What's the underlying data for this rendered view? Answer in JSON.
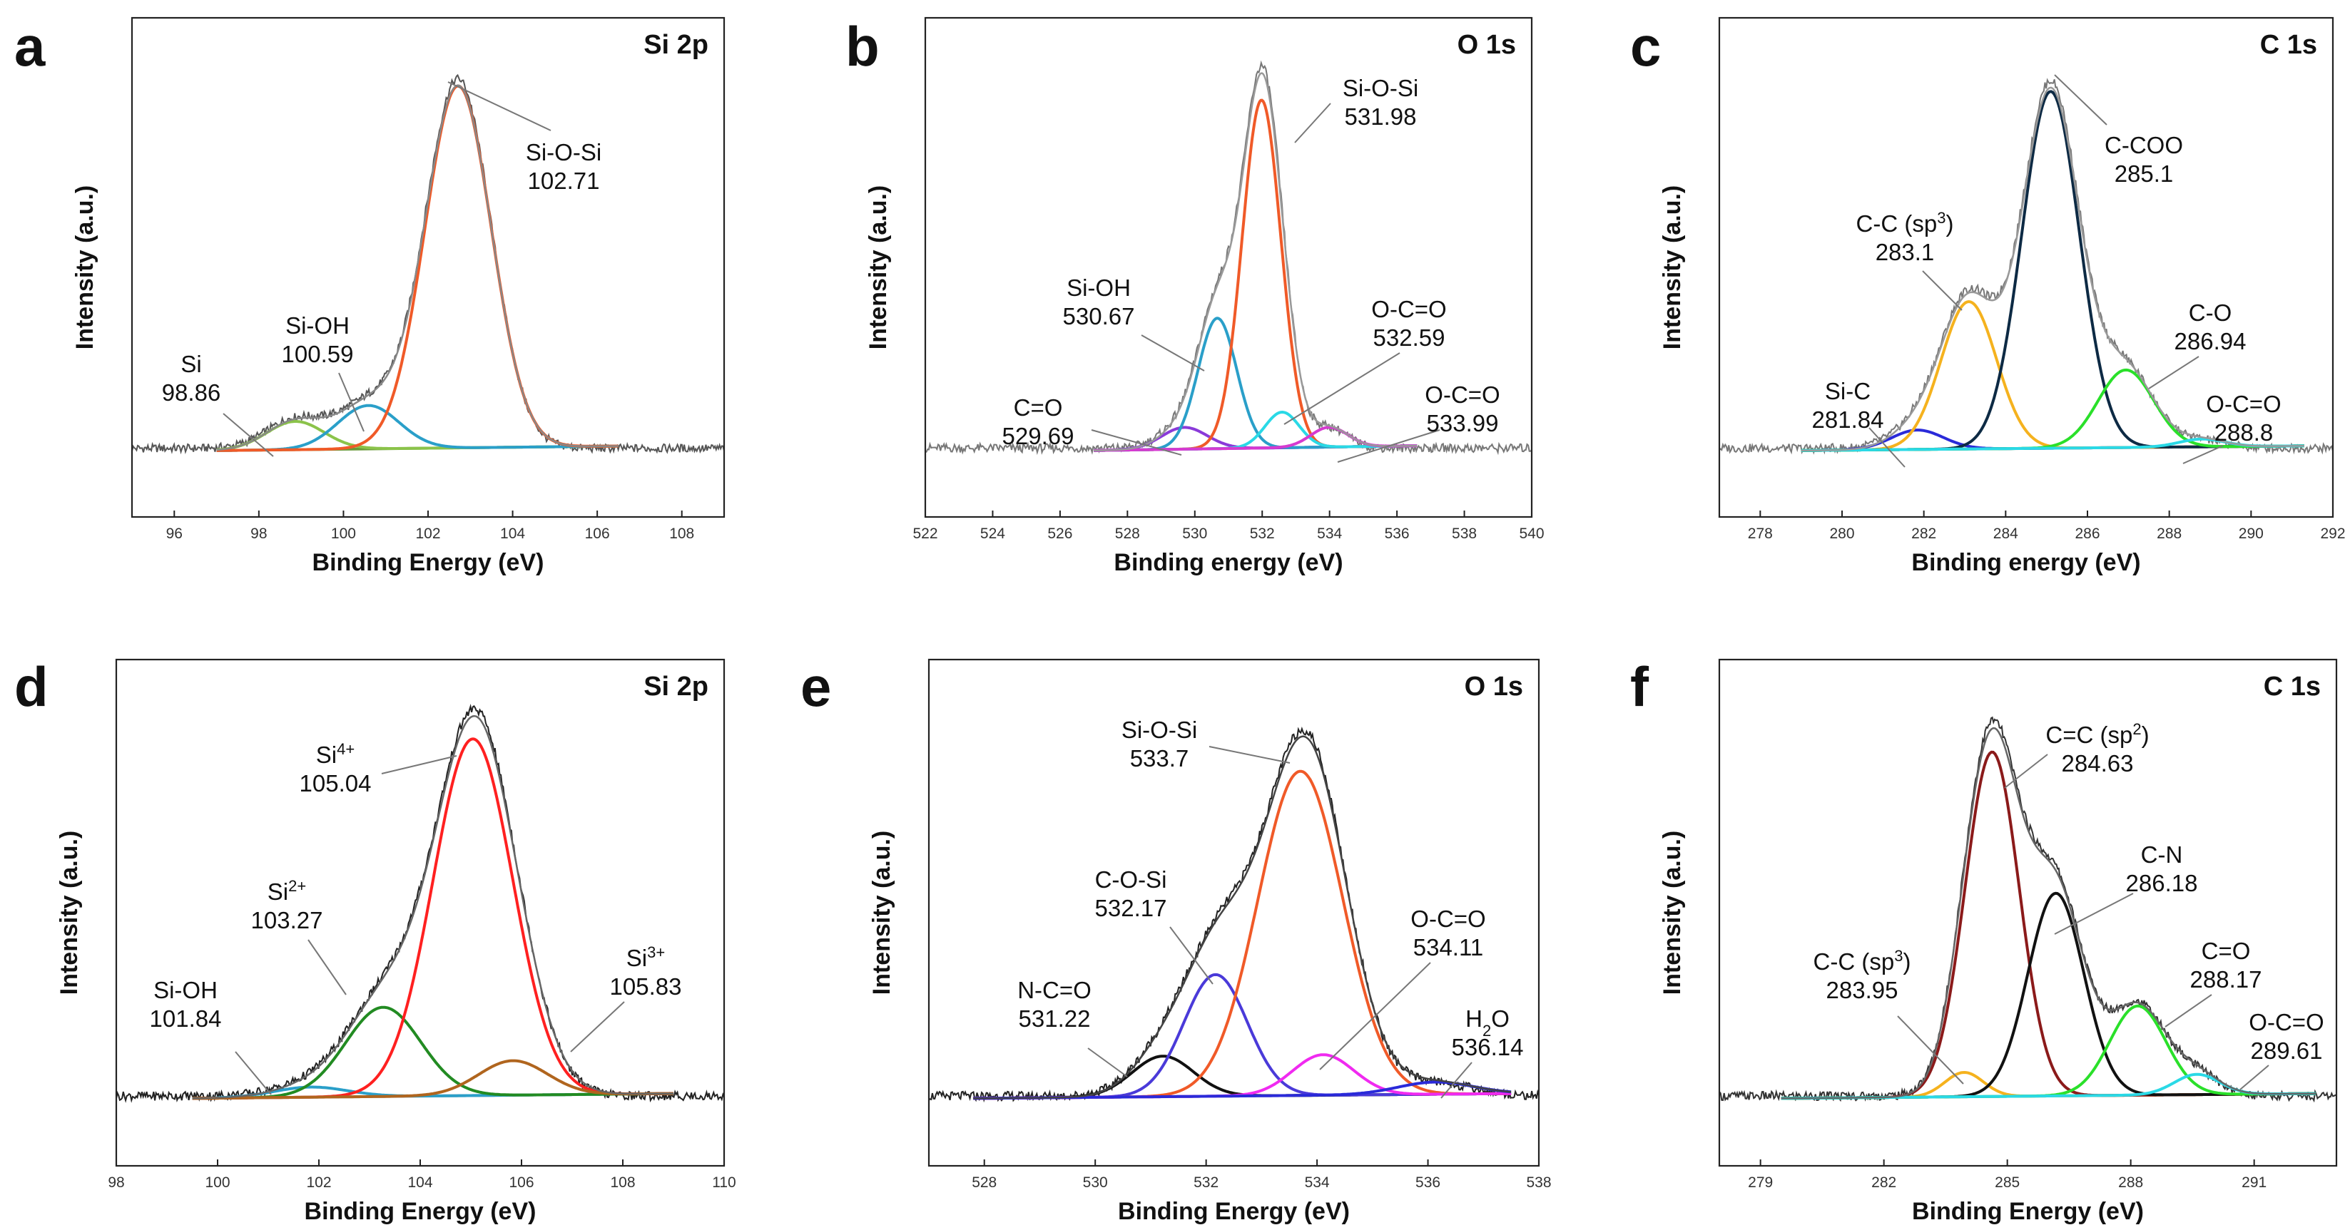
{
  "chart_data": [
    {
      "type": "line",
      "panel": "a",
      "title": "Si 2p",
      "xlabel": "Binding Energy (eV)",
      "ylabel": "Intensity (a.u.)",
      "xlim": [
        95,
        109
      ],
      "xticks": [
        96,
        98,
        100,
        102,
        104,
        106,
        108
      ],
      "fit_range": [
        97,
        106.5
      ],
      "ymax": 1.08,
      "envelope_color": "#888888",
      "raw_color": "#555555",
      "background_color": "#6a9a3a",
      "components": [
        {
          "name": "Si",
          "center": 98.86,
          "fwhm": 1.6,
          "height": 0.075,
          "color": "#8bc34a"
        },
        {
          "name": "Si-OH",
          "center": 100.59,
          "fwhm": 1.7,
          "height": 0.115,
          "color": "#2a9fc9"
        },
        {
          "name": "Si-O-Si",
          "center": 102.71,
          "fwhm": 1.85,
          "height": 0.96,
          "color": "#f05a28"
        }
      ],
      "annotations": [
        {
          "lines": [
            "Si-O-Si",
            "102.71"
          ]
        },
        {
          "lines": [
            "Si-OH",
            "100.59"
          ]
        },
        {
          "lines": [
            "Si",
            "98.86"
          ]
        }
      ]
    },
    {
      "type": "line",
      "panel": "b",
      "title": "O 1s",
      "xlabel": "Binding energy (eV)",
      "ylabel": "Intensity (a.u.)",
      "xlim": [
        522,
        540
      ],
      "xticks": [
        522,
        524,
        526,
        528,
        530,
        532,
        534,
        536,
        538,
        540
      ],
      "fit_range": [
        527,
        536.6
      ],
      "ymax": 1.03,
      "envelope_color": "#999999",
      "raw_color": "#777777",
      "background_color": "#2a6ebf",
      "components": [
        {
          "name": "C=O",
          "center": 529.69,
          "fwhm": 1.6,
          "height": 0.055,
          "color": "#8a3ad9"
        },
        {
          "name": "Si-OH",
          "center": 530.67,
          "fwhm": 1.35,
          "height": 0.33,
          "color": "#2a9fc9"
        },
        {
          "name": "Si-O-Si",
          "center": 531.98,
          "fwhm": 1.35,
          "height": 0.88,
          "color": "#f05a28"
        },
        {
          "name": "O-C=O",
          "center": 532.59,
          "fwhm": 1.2,
          "height": 0.09,
          "color": "#2ad9e6"
        },
        {
          "name": "O-C=O (2)",
          "center": 533.99,
          "fwhm": 1.3,
          "height": 0.05,
          "color": "#d63ad0"
        }
      ],
      "annotations": [
        {
          "lines": [
            "Si-O-Si",
            "531.98"
          ]
        },
        {
          "lines": [
            "Si-OH",
            "530.67"
          ]
        },
        {
          "lines": [
            "O-C=O",
            "532.59"
          ]
        },
        {
          "lines": [
            "C=O",
            "529.69"
          ]
        },
        {
          "lines": [
            "O-C=O",
            "533.99"
          ]
        }
      ]
    },
    {
      "type": "line",
      "panel": "c",
      "title": "C 1s",
      "xlabel": "Binding energy (eV)",
      "ylabel": "Intensity (a.u.)",
      "xlim": [
        277,
        292
      ],
      "xticks": [
        278,
        280,
        282,
        284,
        286,
        288,
        290,
        292
      ],
      "fit_range": [
        279,
        291.3
      ],
      "ymax": 1.05,
      "envelope_color": "#999999",
      "raw_color": "#777777",
      "background_color": "#888888",
      "components": [
        {
          "name": "Si-C",
          "center": 281.84,
          "fwhm": 1.5,
          "height": 0.05,
          "color": "#2a2ad9"
        },
        {
          "name": "C-C (sp3)",
          "center": 283.1,
          "fwhm": 1.6,
          "height": 0.38,
          "color": "#f5b21e"
        },
        {
          "name": "C-COO",
          "center": 285.1,
          "fwhm": 1.65,
          "height": 0.92,
          "color": "#0d2a44"
        },
        {
          "name": "C-O",
          "center": 286.94,
          "fwhm": 1.6,
          "height": 0.2,
          "color": "#2ae02a"
        },
        {
          "name": "O-C=O",
          "center": 288.8,
          "fwhm": 1.3,
          "height": 0.02,
          "color": "#2ad9e6"
        }
      ],
      "annotations": [
        {
          "lines": [
            "C-COO",
            "285.1"
          ]
        },
        {
          "lines": [
            "C-C (sp3)",
            "283.1"
          ]
        },
        {
          "lines": [
            "C-O",
            "286.94"
          ]
        },
        {
          "lines": [
            "Si-C",
            "281.84"
          ]
        },
        {
          "lines": [
            "O-C=O",
            "288.8"
          ]
        }
      ]
    },
    {
      "type": "line",
      "panel": "d",
      "title": "Si 2p",
      "xlabel": "Binding Energy (eV)",
      "ylabel": "Intensity (a.u.)",
      "xlim": [
        98,
        110
      ],
      "xticks": [
        98,
        100,
        102,
        104,
        106,
        108,
        110
      ],
      "fit_range": [
        99.5,
        109
      ],
      "ymax": 1.02,
      "envelope_color": "#666666",
      "raw_color": "#222222",
      "background_color": "#888888",
      "components": [
        {
          "name": "Si-OH",
          "center": 101.84,
          "fwhm": 1.7,
          "height": 0.025,
          "color": "#2a9fc9"
        },
        {
          "name": "Si2+",
          "center": 103.27,
          "fwhm": 1.75,
          "height": 0.22,
          "color": "#228b22"
        },
        {
          "name": "Si4+",
          "center": 105.04,
          "fwhm": 1.85,
          "height": 0.88,
          "color": "#ff2020"
        },
        {
          "name": "Si3+",
          "center": 105.83,
          "fwhm": 1.6,
          "height": 0.085,
          "color": "#b0651e"
        }
      ],
      "annotations": [
        {
          "lines": [
            "Si4+",
            "105.04"
          ]
        },
        {
          "lines": [
            "Si2+",
            "103.27"
          ]
        },
        {
          "lines": [
            "Si3+",
            "105.83"
          ]
        },
        {
          "lines": [
            "Si-OH",
            "101.84"
          ]
        }
      ]
    },
    {
      "type": "line",
      "panel": "e",
      "title": "O 1s",
      "xlabel": "Binding Energy (eV)",
      "ylabel": "Intensity (a.u.)",
      "xlim": [
        527,
        538
      ],
      "xticks": [
        528,
        530,
        532,
        534,
        536,
        538
      ],
      "fit_range": [
        527.8,
        537.5
      ],
      "ymax": 1.02,
      "envelope_color": "#444444",
      "raw_color": "#222222",
      "background_color": "#888888",
      "components": [
        {
          "name": "N-C=O",
          "center": 531.22,
          "fwhm": 1.3,
          "height": 0.1,
          "color": "#111111"
        },
        {
          "name": "C-O-Si",
          "center": 532.17,
          "fwhm": 1.35,
          "height": 0.3,
          "color": "#4a3ad9"
        },
        {
          "name": "Si-O-Si",
          "center": 533.7,
          "fwhm": 1.8,
          "height": 0.8,
          "color": "#f05a28"
        },
        {
          "name": "O-C=O",
          "center": 534.11,
          "fwhm": 1.3,
          "height": 0.1,
          "color": "#f02af0"
        },
        {
          "name": "H2O",
          "center": 536.14,
          "fwhm": 1.6,
          "height": 0.03,
          "color": "#2a2ad9"
        }
      ],
      "annotations": [
        {
          "lines": [
            "Si-O-Si",
            "533.7"
          ]
        },
        {
          "lines": [
            "C-O-Si",
            "532.17"
          ]
        },
        {
          "lines": [
            "O-C=O",
            "534.11"
          ]
        },
        {
          "lines": [
            "N-C=O",
            "531.22"
          ]
        },
        {
          "lines": [
            "H2O",
            "536.14"
          ]
        }
      ]
    },
    {
      "type": "line",
      "panel": "f",
      "title": "C 1s",
      "xlabel": "Binding Energy (eV)",
      "ylabel": "Intensity (a.u.)",
      "xlim": [
        278,
        293
      ],
      "xticks": [
        279,
        282,
        285,
        288,
        291
      ],
      "fit_range": [
        279.5,
        292.5
      ],
      "ymax": 1.02,
      "envelope_color": "#666666",
      "raw_color": "#333333",
      "background_color": "#888888",
      "components": [
        {
          "name": "C-C (sp3)",
          "center": 283.95,
          "fwhm": 1.1,
          "height": 0.06,
          "color": "#f5b21e"
        },
        {
          "name": "C=C (sp2)",
          "center": 284.63,
          "fwhm": 1.55,
          "height": 0.85,
          "color": "#8b1a1a"
        },
        {
          "name": "C-N",
          "center": 286.18,
          "fwhm": 1.6,
          "height": 0.5,
          "color": "#111111"
        },
        {
          "name": "C=O",
          "center": 288.17,
          "fwhm": 1.6,
          "height": 0.22,
          "color": "#2ae02a"
        },
        {
          "name": "O-C=O",
          "center": 289.61,
          "fwhm": 1.3,
          "height": 0.05,
          "color": "#2ad9e6"
        }
      ],
      "annotations": [
        {
          "lines": [
            "C=C (sp2)",
            "284.63"
          ]
        },
        {
          "lines": [
            "C-N",
            "286.18"
          ]
        },
        {
          "lines": [
            "C=O",
            "288.17"
          ]
        },
        {
          "lines": [
            "C-C (sp3)",
            "283.95"
          ]
        },
        {
          "lines": [
            "O-C=O",
            "289.61"
          ]
        }
      ]
    }
  ]
}
